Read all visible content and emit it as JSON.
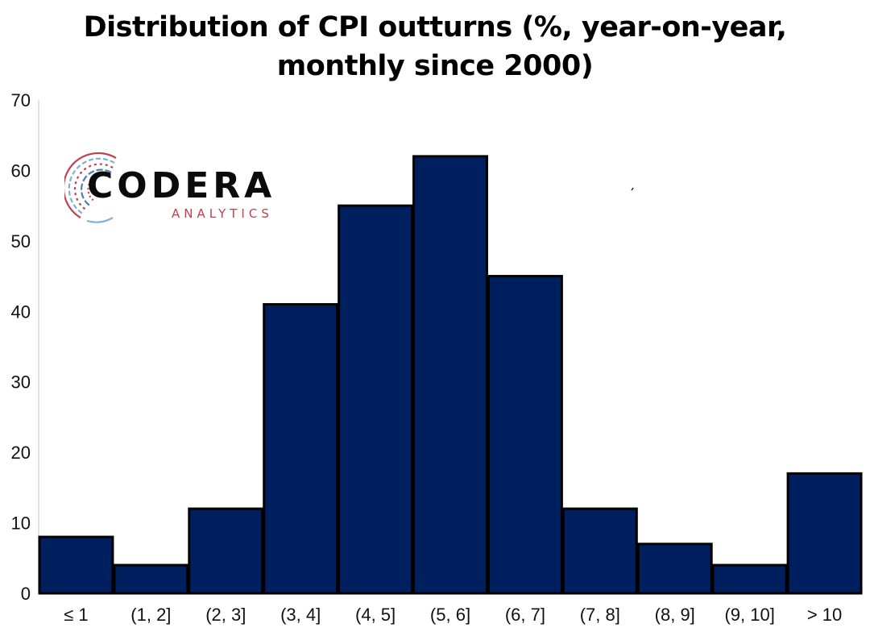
{
  "title": "Distribution of CPI outturns (%, year-on-year, monthly since 2000)",
  "logo": {
    "name": "CODERA",
    "tagline": "ANALYTICS"
  },
  "colors": {
    "bar": "#001F5F",
    "bar_edge": "#000000",
    "axis": "#d9d9d9"
  },
  "chart_data": {
    "type": "bar",
    "title": "Distribution of CPI outturns (%, year-on-year, monthly since 2000)",
    "categories": [
      "≤ 1",
      "(1, 2]",
      "(2, 3]",
      "(3, 4]",
      "(4, 5]",
      "(5, 6]",
      "(6, 7]",
      "(7, 8]",
      "(8, 9]",
      "(9, 10]",
      "> 10"
    ],
    "values": [
      8,
      4,
      12,
      41,
      55,
      62,
      45,
      12,
      7,
      4,
      17
    ],
    "ylim": [
      0,
      70
    ],
    "yticks": [
      0,
      10,
      20,
      30,
      40,
      50,
      60,
      70
    ],
    "xlabel": "",
    "ylabel": "",
    "grid": false
  }
}
